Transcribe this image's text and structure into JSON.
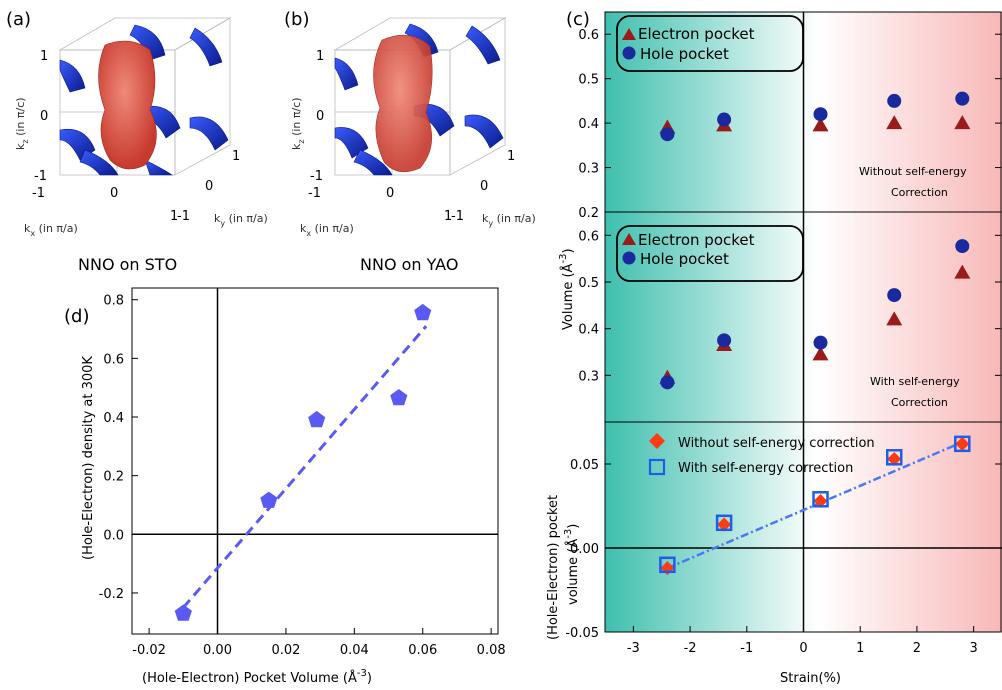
{
  "panels": {
    "a": {
      "letter": "(a)",
      "caption": "NNO on STO"
    },
    "b": {
      "letter": "(b)",
      "caption": "NNO on YAO"
    },
    "c": {
      "letter": "(c)"
    },
    "d": {
      "letter": "(d)"
    }
  },
  "fermi_axes": {
    "kz": "k",
    "kz_sub": "z",
    "kz_unit": " (in π/c)",
    "kx": "k",
    "kx_sub": "x",
    "kx_unit": " (in π/a)",
    "ky": "k",
    "ky_sub": "y",
    "ky_unit": " (in π/a)",
    "ticks_z": [
      "1",
      "0",
      "-1"
    ],
    "ticks_x": [
      "-1",
      "0",
      "1"
    ],
    "ticks_y": [
      "-1",
      "0",
      "1"
    ]
  },
  "colors": {
    "electron": "#9b1a1a",
    "hole": "#1a2a9e",
    "without_corr": "#ff3b14",
    "with_corr": "#1e5ee6",
    "fit_c": "#4a78f2",
    "pentagon": "#5a5af2",
    "teal": "#3fbfae",
    "pink": "#f8b8b8"
  },
  "chart_data": [
    {
      "type": "scatter",
      "id": "c-top",
      "ylim": [
        0.2,
        0.65
      ],
      "yticks": [
        0.2,
        0.3,
        0.4,
        0.5,
        0.6
      ],
      "xlim": [
        -3.5,
        3.5
      ],
      "legend": [
        "Electron pocket",
        "Hole pocket"
      ],
      "annotation": [
        "Without self-energy",
        "Correction"
      ],
      "series": [
        {
          "name": "Electron pocket",
          "marker": "triangle",
          "x": [
            -2.4,
            -1.4,
            0.3,
            1.6,
            2.8
          ],
          "y": [
            0.39,
            0.395,
            0.395,
            0.4,
            0.4
          ]
        },
        {
          "name": "Hole pocket",
          "marker": "circle",
          "x": [
            -2.4,
            -1.4,
            0.3,
            1.6,
            2.8
          ],
          "y": [
            0.375,
            0.408,
            0.42,
            0.45,
            0.455
          ]
        }
      ]
    },
    {
      "type": "scatter",
      "id": "c-mid",
      "ylim": [
        0.2,
        0.65
      ],
      "yticks": [
        0.2,
        0.3,
        0.4,
        0.5,
        0.6
      ],
      "xlim": [
        -3.5,
        3.5
      ],
      "legend": [
        "Electron pocket",
        "Hole pocket"
      ],
      "annotation": [
        "With self-energy",
        "Correction"
      ],
      "series": [
        {
          "name": "Electron pocket",
          "marker": "triangle",
          "x": [
            -2.4,
            -1.4,
            0.3,
            1.6,
            2.8
          ],
          "y": [
            0.295,
            0.365,
            0.345,
            0.42,
            0.52
          ]
        },
        {
          "name": "Hole pocket",
          "marker": "circle",
          "x": [
            -2.4,
            -1.4,
            0.3,
            1.6,
            2.8
          ],
          "y": [
            0.285,
            0.375,
            0.37,
            0.472,
            0.577
          ]
        }
      ]
    },
    {
      "type": "scatter",
      "id": "c-bot",
      "ylim": [
        -0.05,
        0.075
      ],
      "yticks": [
        -0.05,
        0.0,
        0.05
      ],
      "ytick_labels": [
        "-0.05",
        "0.00",
        "0.05"
      ],
      "xlim": [
        -3.5,
        3.5
      ],
      "xticks": [
        -3,
        -2,
        -1,
        0,
        1,
        2,
        3
      ],
      "xlabel": "Strain(%)",
      "legend": [
        "Without self-energy correction",
        "With self-energy correction"
      ],
      "series": [
        {
          "name": "Without self-energy correction",
          "marker": "diamond",
          "x": [
            -2.4,
            -1.4,
            0.3,
            1.6,
            2.8
          ],
          "y": [
            -0.012,
            0.014,
            0.028,
            0.053,
            0.062
          ]
        },
        {
          "name": "With self-energy correction",
          "marker": "square",
          "x": [
            -2.4,
            -1.4,
            0.3,
            1.6,
            2.8
          ],
          "y": [
            -0.01,
            0.015,
            0.029,
            0.054,
            0.062
          ]
        }
      ],
      "fit_line": {
        "x": [
          -2.4,
          2.8
        ],
        "y": [
          -0.012,
          0.063
        ]
      }
    },
    {
      "type": "scatter",
      "id": "d",
      "xlim": [
        -0.025,
        0.082
      ],
      "ylim": [
        -0.34,
        0.84
      ],
      "xticks": [
        -0.02,
        0.0,
        0.02,
        0.04,
        0.06,
        0.08
      ],
      "xtick_labels": [
        "-0.02",
        "0.00",
        "0.02",
        "0.04",
        "0.06",
        "0.08"
      ],
      "yticks": [
        -0.2,
        0.0,
        0.2,
        0.4,
        0.6,
        0.8
      ],
      "ytick_labels": [
        "-0.2",
        "0.0",
        "0.2",
        "0.4",
        "0.6",
        "0.8"
      ],
      "xlabel_main": "(Hole-Electron) Pocket Volume (",
      "xlabel_unit": "Å",
      "xlabel_sup": "-3",
      "xlabel_end": ")",
      "ylabel": "(Hole-Electron) density at 300K",
      "series": [
        {
          "marker": "pentagon",
          "x": [
            -0.01,
            0.015,
            0.029,
            0.053,
            0.06
          ],
          "y": [
            -0.27,
            0.115,
            0.39,
            0.465,
            0.755
          ]
        }
      ],
      "fit_line": {
        "x": [
          -0.01,
          0.061
        ],
        "y": [
          -0.25,
          0.71
        ]
      }
    }
  ],
  "c_shared_ylabel": {
    "main": "Volume (",
    "unit": "Å",
    "sup": "-3",
    "end": ")"
  },
  "c_bot_ylabel": {
    "line1": "(Hole-Electron) pocket",
    "line2": "volume (",
    "unit": "Å",
    "sup": "-3",
    "end": ")"
  }
}
